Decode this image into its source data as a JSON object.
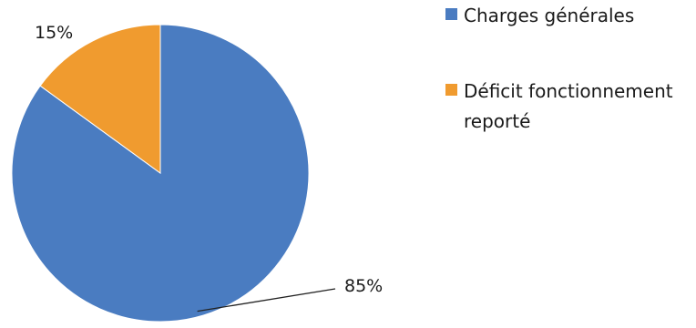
{
  "chart_data": {
    "type": "pie",
    "title": "",
    "slices": [
      {
        "label": "Charges générales",
        "value": 85,
        "display": "85%",
        "color": "#4a7cc1"
      },
      {
        "label": "Déficit fonctionnement reporté",
        "value": 15,
        "display": "15%",
        "color": "#f09b2f"
      }
    ],
    "legend": {
      "position": "right",
      "items": [
        {
          "lines": [
            "Charges générales"
          ],
          "color": "#4a7cc1"
        },
        {
          "lines": [
            "Déficit fonctionnement",
            "reporté"
          ],
          "color": "#f09b2f"
        }
      ]
    }
  }
}
